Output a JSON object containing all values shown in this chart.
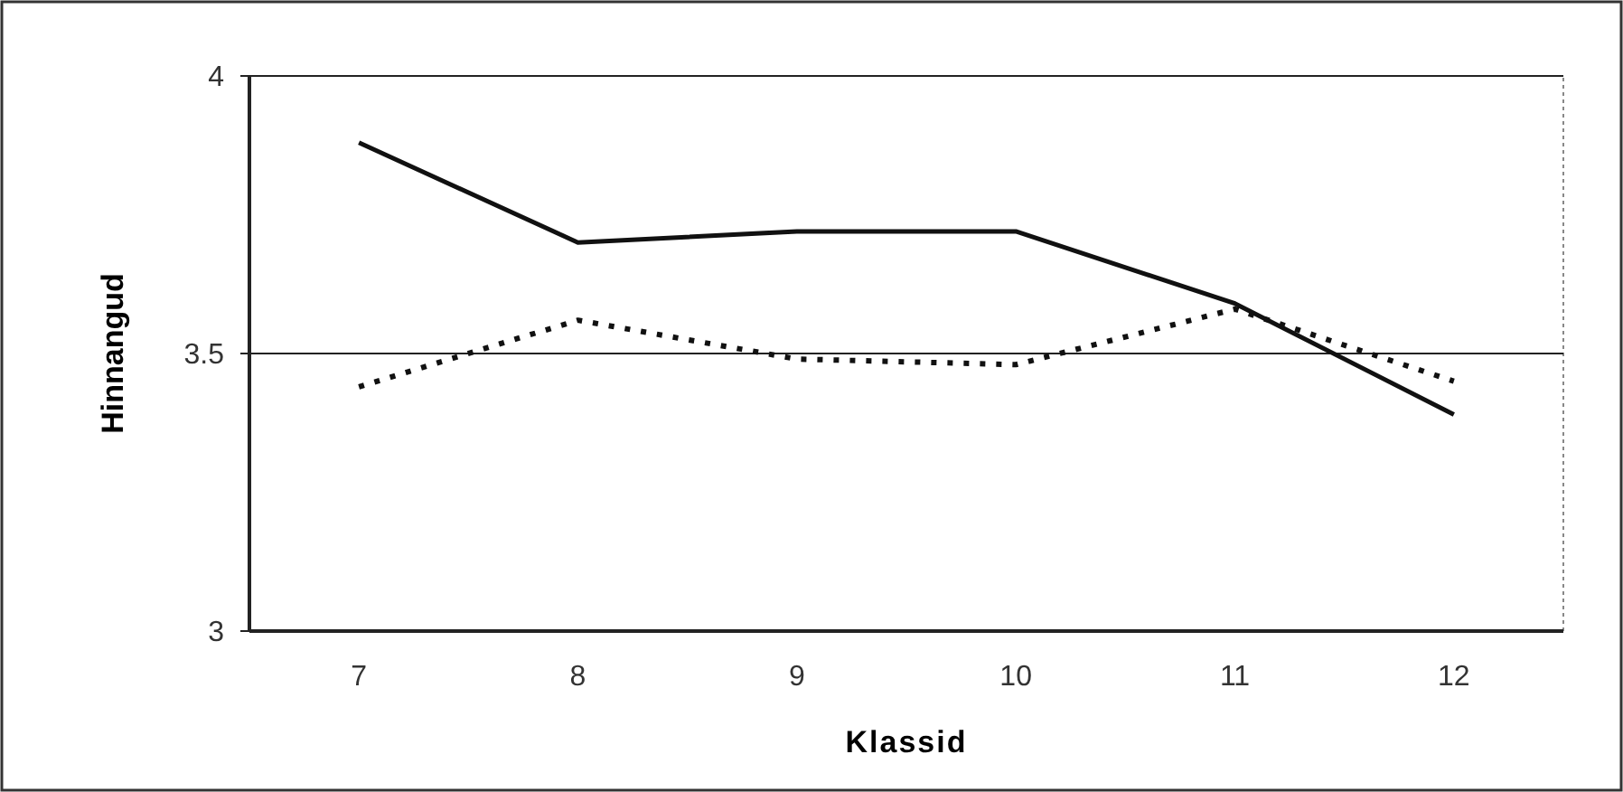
{
  "chart_data": {
    "type": "line",
    "xlabel": "Klassid",
    "ylabel": "Hinnangud",
    "categories": [
      "7",
      "8",
      "9",
      "10",
      "11",
      "12"
    ],
    "series": [
      {
        "color": "#111111",
        "line_style": "solid",
        "values": [
          3.88,
          3.7,
          3.72,
          3.72,
          3.59,
          3.39
        ]
      },
      {
        "color": "#111111",
        "line_style": "dotted",
        "values": [
          3.44,
          3.56,
          3.49,
          3.48,
          3.58,
          3.45
        ]
      }
    ],
    "ylim": [
      3,
      4
    ],
    "yticks": [
      3,
      3.5,
      4
    ],
    "grid": "y",
    "marker": "none"
  }
}
